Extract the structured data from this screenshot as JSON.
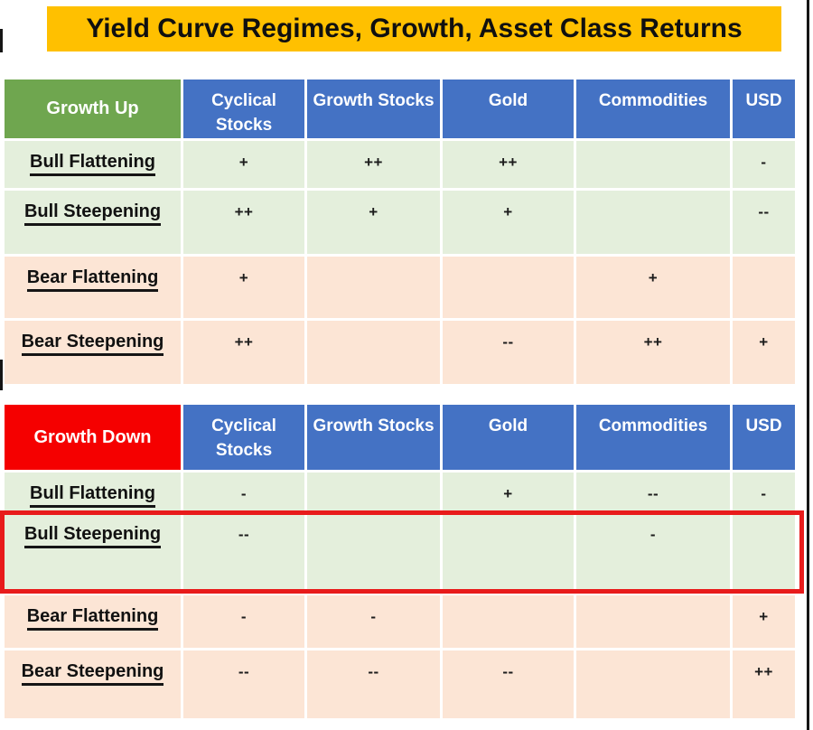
{
  "title": "Yield Curve Regimes, Growth, Asset Class Returns",
  "colors": {
    "banner": "#FFC000",
    "column_header": "#4472C4",
    "growth_up_header": "#6FA64F",
    "growth_down_header": "#F50000",
    "bull_row": "#E4EFDC",
    "bear_row": "#FCE5D5",
    "highlight_border": "#E81B1B"
  },
  "chart_data": [
    {
      "type": "table",
      "header": "Growth Up",
      "header_color": "#6FA64F",
      "columns": [
        "Cyclical Stocks",
        "Growth Stocks",
        "Gold",
        "Commodities",
        "USD"
      ],
      "rows": [
        {
          "label": "Bull Flattening",
          "values": [
            "+",
            "++",
            "++",
            "",
            "-"
          ]
        },
        {
          "label": "Bull Steepening",
          "values": [
            "++",
            "+",
            "+",
            "",
            "--"
          ]
        },
        {
          "label": "Bear Flattening",
          "values": [
            "+",
            "",
            "",
            "+",
            ""
          ]
        },
        {
          "label": "Bear Steepening",
          "values": [
            "++",
            "",
            "--",
            "++",
            "+"
          ]
        }
      ]
    },
    {
      "type": "table",
      "header": "Growth Down",
      "header_color": "#F50000",
      "columns": [
        "Cyclical Stocks",
        "Growth Stocks",
        "Gold",
        "Commodities",
        "USD"
      ],
      "rows": [
        {
          "label": "Bull Flattening",
          "values": [
            "-",
            "",
            "+",
            "--",
            "-"
          ]
        },
        {
          "label": "Bull Steepening",
          "values": [
            "--",
            "",
            "",
            "-",
            ""
          ]
        },
        {
          "label": "Bear Flattening",
          "values": [
            "-",
            "-",
            "",
            "",
            "+"
          ]
        },
        {
          "label": "Bear Steepening",
          "values": [
            "--",
            "--",
            "--",
            "",
            "++"
          ]
        }
      ]
    }
  ],
  "highlight": {
    "table_index": 1,
    "row_label": "Bull Steepening",
    "color": "#E81B1B"
  }
}
